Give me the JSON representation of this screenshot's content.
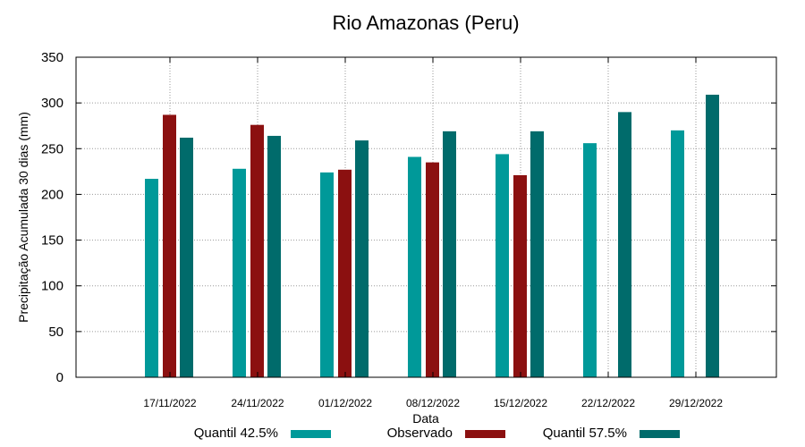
{
  "chart_data": {
    "type": "bar",
    "title": "Rio Amazonas (Peru)",
    "xlabel": "Data",
    "ylabel": "Precipitação Acumulada 30 dias (mm)",
    "ylim": [
      0,
      350
    ],
    "yticks": [
      0,
      50,
      100,
      150,
      200,
      250,
      300,
      350
    ],
    "categories": [
      "17/11/2022",
      "24/11/2022",
      "01/12/2022",
      "08/12/2022",
      "15/12/2022",
      "22/12/2022",
      "29/12/2022"
    ],
    "series": [
      {
        "name": "Quantil 42.5%",
        "color": "#009999",
        "values": [
          217,
          228,
          224,
          241,
          244,
          256,
          270
        ]
      },
      {
        "name": "Observado",
        "color": "#8b1010",
        "values": [
          287,
          276,
          227,
          235,
          221,
          null,
          null
        ]
      },
      {
        "name": "Quantil 57.5%",
        "color": "#006b6b",
        "values": [
          262,
          264,
          259,
          269,
          269,
          290,
          309
        ]
      }
    ],
    "legend_position": "bottom",
    "grid": true
  }
}
